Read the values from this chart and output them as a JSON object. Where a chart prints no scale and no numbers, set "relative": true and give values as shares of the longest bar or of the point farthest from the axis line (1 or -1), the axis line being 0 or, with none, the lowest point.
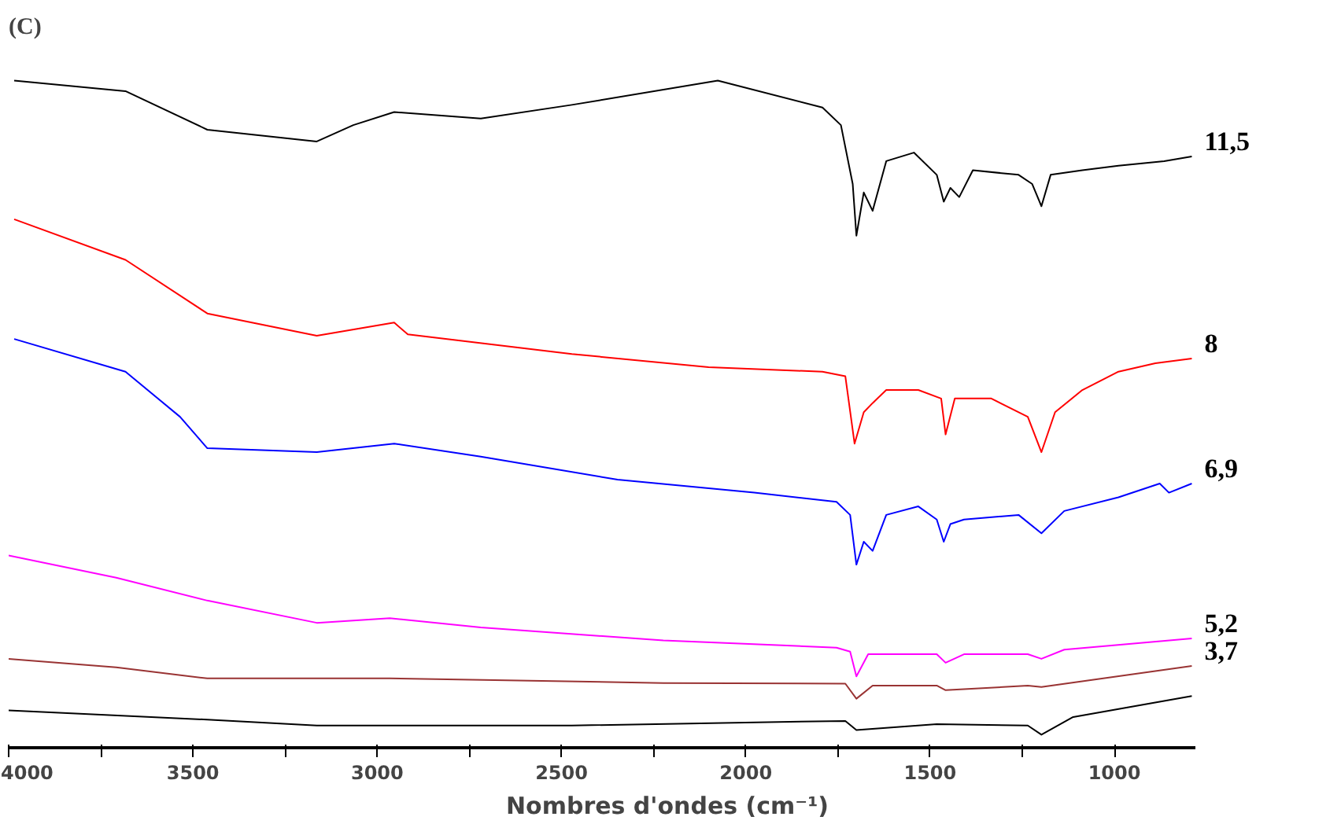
{
  "chart_data": {
    "type": "line",
    "relative": true,
    "title": "(C)",
    "xlabel": "Nombres d'ondes (cm⁻¹)",
    "xlim": [
      4000,
      780
    ],
    "xticks": [
      4000,
      {
        "value": 3750,
        "label": null
      },
      3500,
      {
        "value": 3250,
        "label": null
      },
      3000,
      {
        "value": 2750,
        "label": null
      },
      2500,
      {
        "value": 2250,
        "label": null
      },
      2000,
      {
        "value": 1750,
        "label": null
      },
      1500,
      {
        "value": 1250,
        "label": null
      },
      1000
    ],
    "grid": false,
    "marker": "none",
    "line_style": "solid",
    "series": [
      {
        "name": "11,5",
        "color": "#000000",
        "x": [
          3985,
          3683,
          3461,
          3164,
          3065,
          2954,
          2719,
          2472,
          2076,
          1792,
          1742,
          1710,
          1700,
          1680,
          1656,
          1619,
          1544,
          1482,
          1463,
          1445,
          1421,
          1384,
          1260,
          1223,
          1198,
          1173,
          1087,
          989,
          865,
          790
        ],
        "values": [
          1.0,
          0.984,
          0.925,
          0.907,
          0.932,
          0.952,
          0.942,
          0.963,
          1.0,
          0.959,
          0.932,
          0.842,
          0.763,
          0.829,
          0.801,
          0.877,
          0.89,
          0.856,
          0.815,
          0.836,
          0.822,
          0.863,
          0.856,
          0.842,
          0.808,
          0.856,
          0.863,
          0.87,
          0.877,
          0.884
        ]
      },
      {
        "name": "8",
        "color": "#ff0000",
        "x": [
          3985,
          3683,
          3461,
          3164,
          2954,
          2917,
          2472,
          2101,
          1792,
          1730,
          1705,
          1680,
          1656,
          1619,
          1532,
          1470,
          1458,
          1433,
          1334,
          1235,
          1198,
          1161,
          1087,
          989,
          889,
          790
        ],
        "values": [
          0.788,
          0.726,
          0.644,
          0.61,
          0.63,
          0.612,
          0.582,
          0.562,
          0.555,
          0.548,
          0.445,
          0.493,
          0.507,
          0.527,
          0.527,
          0.514,
          0.459,
          0.514,
          0.514,
          0.486,
          0.432,
          0.493,
          0.527,
          0.555,
          0.568,
          0.575
        ]
      },
      {
        "name": "6,9",
        "color": "#0000ff",
        "x": [
          3985,
          3683,
          3535,
          3461,
          3164,
          2954,
          2719,
          2348,
          1977,
          1754,
          1717,
          1700,
          1680,
          1656,
          1619,
          1532,
          1482,
          1463,
          1445,
          1408,
          1260,
          1198,
          1136,
          989,
          877,
          852,
          790
        ],
        "values": [
          0.605,
          0.555,
          0.486,
          0.438,
          0.432,
          0.445,
          0.425,
          0.39,
          0.37,
          0.356,
          0.336,
          0.26,
          0.295,
          0.281,
          0.336,
          0.349,
          0.329,
          0.295,
          0.322,
          0.329,
          0.336,
          0.308,
          0.342,
          0.363,
          0.384,
          0.37,
          0.384
        ]
      },
      {
        "name": "5,2",
        "color": "#ff00ff",
        "x": [
          4000,
          3708,
          3461,
          3164,
          2966,
          2719,
          2224,
          1754,
          1717,
          1700,
          1668,
          1482,
          1458,
          1408,
          1235,
          1198,
          1136,
          790
        ],
        "values": [
          0.274,
          0.24,
          0.205,
          0.171,
          0.178,
          0.164,
          0.144,
          0.133,
          0.127,
          0.089,
          0.123,
          0.123,
          0.11,
          0.123,
          0.123,
          0.116,
          0.13,
          0.147
        ]
      },
      {
        "name": "3,7",
        "color": "#993333",
        "x": [
          4000,
          3708,
          3461,
          2966,
          2224,
          1730,
          1700,
          1656,
          1482,
          1458,
          1235,
          1198,
          790
        ],
        "values": [
          0.116,
          0.103,
          0.086,
          0.086,
          0.079,
          0.078,
          0.055,
          0.075,
          0.075,
          0.068,
          0.075,
          0.073,
          0.105
        ]
      },
      {
        "color": "#000000",
        "x": [
          4000,
          3461,
          3164,
          2472,
          1730,
          1700,
          1482,
          1235,
          1198,
          1112,
          790
        ],
        "values": [
          0.037,
          0.023,
          0.014,
          0.014,
          0.021,
          0.007,
          0.016,
          0.014,
          0.0,
          0.027,
          0.059
        ]
      }
    ]
  }
}
